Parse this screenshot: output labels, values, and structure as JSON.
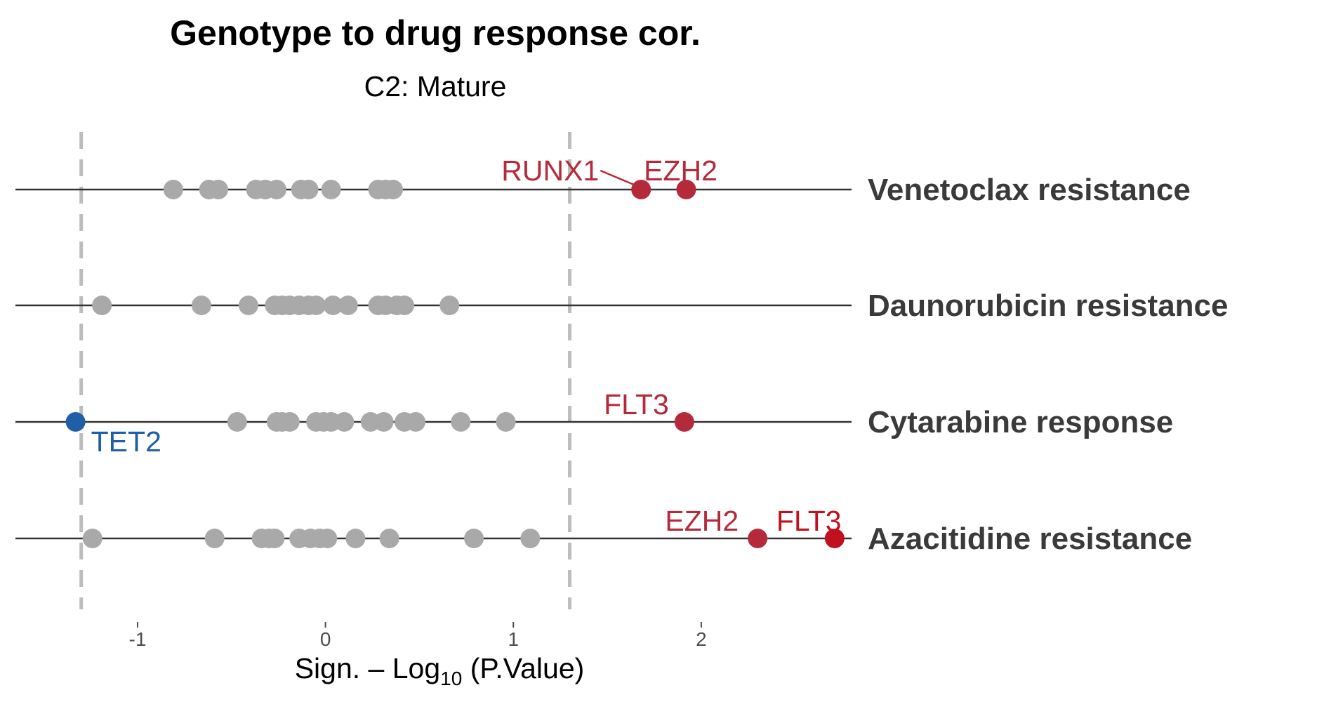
{
  "chart_data": {
    "type": "scatter",
    "title": "Genotype to drug response cor.",
    "subtitle": "C2: Mature",
    "xlabel": {
      "prefix": "Sign. – Log",
      "subscript": "10",
      "suffix": " (P.Value)"
    },
    "xlim": [
      -1.65,
      2.8
    ],
    "x_ticks": [
      -1,
      0,
      1,
      2
    ],
    "x_tick_labels": [
      "-1",
      "0",
      "1",
      "2"
    ],
    "thresholds": [
      -1.3,
      1.3
    ],
    "grid": false,
    "colors": {
      "neutral": "#a9a9a9",
      "positive": "#b52a3a",
      "positive_strong": "#c0111f",
      "negative": "#1f5fa8",
      "line": "#333333",
      "threshold": "#bdbdbd"
    },
    "rows": [
      {
        "name": "Venetoclax resistance",
        "neutral_values": [
          -0.81,
          -0.62,
          -0.57,
          -0.37,
          -0.32,
          -0.26,
          -0.13,
          -0.09,
          0.03,
          0.28,
          0.32,
          0.36
        ],
        "highlighted": [
          {
            "gene": "RUNX1",
            "value": 1.68,
            "color": "positive"
          },
          {
            "gene": "EZH2",
            "value": 1.92,
            "color": "positive"
          }
        ]
      },
      {
        "name": "Daunorubicin resistance",
        "neutral_values": [
          -1.19,
          -0.66,
          -0.41,
          -0.27,
          -0.23,
          -0.19,
          -0.14,
          -0.09,
          -0.05,
          0.04,
          0.12,
          0.28,
          0.32,
          0.38,
          0.42,
          0.66
        ],
        "highlighted": []
      },
      {
        "name": "Cytarabine response",
        "neutral_values": [
          -0.47,
          -0.26,
          -0.23,
          -0.19,
          -0.05,
          -0.01,
          0.03,
          0.1,
          0.24,
          0.31,
          0.42,
          0.48,
          0.72,
          0.96
        ],
        "highlighted": [
          {
            "gene": "TET2",
            "value": -1.33,
            "color": "negative"
          },
          {
            "gene": "FLT3",
            "value": 1.91,
            "color": "positive"
          }
        ]
      },
      {
        "name": "Azacitidine resistance",
        "neutral_values": [
          -1.24,
          -0.59,
          -0.34,
          -0.3,
          -0.27,
          -0.14,
          -0.08,
          -0.03,
          0.01,
          0.16,
          0.34,
          0.79,
          1.09
        ],
        "highlighted": [
          {
            "gene": "EZH2",
            "value": 2.3,
            "color": "positive"
          },
          {
            "gene": "FLT3",
            "value": 2.71,
            "color": "positive_strong"
          }
        ]
      }
    ]
  }
}
